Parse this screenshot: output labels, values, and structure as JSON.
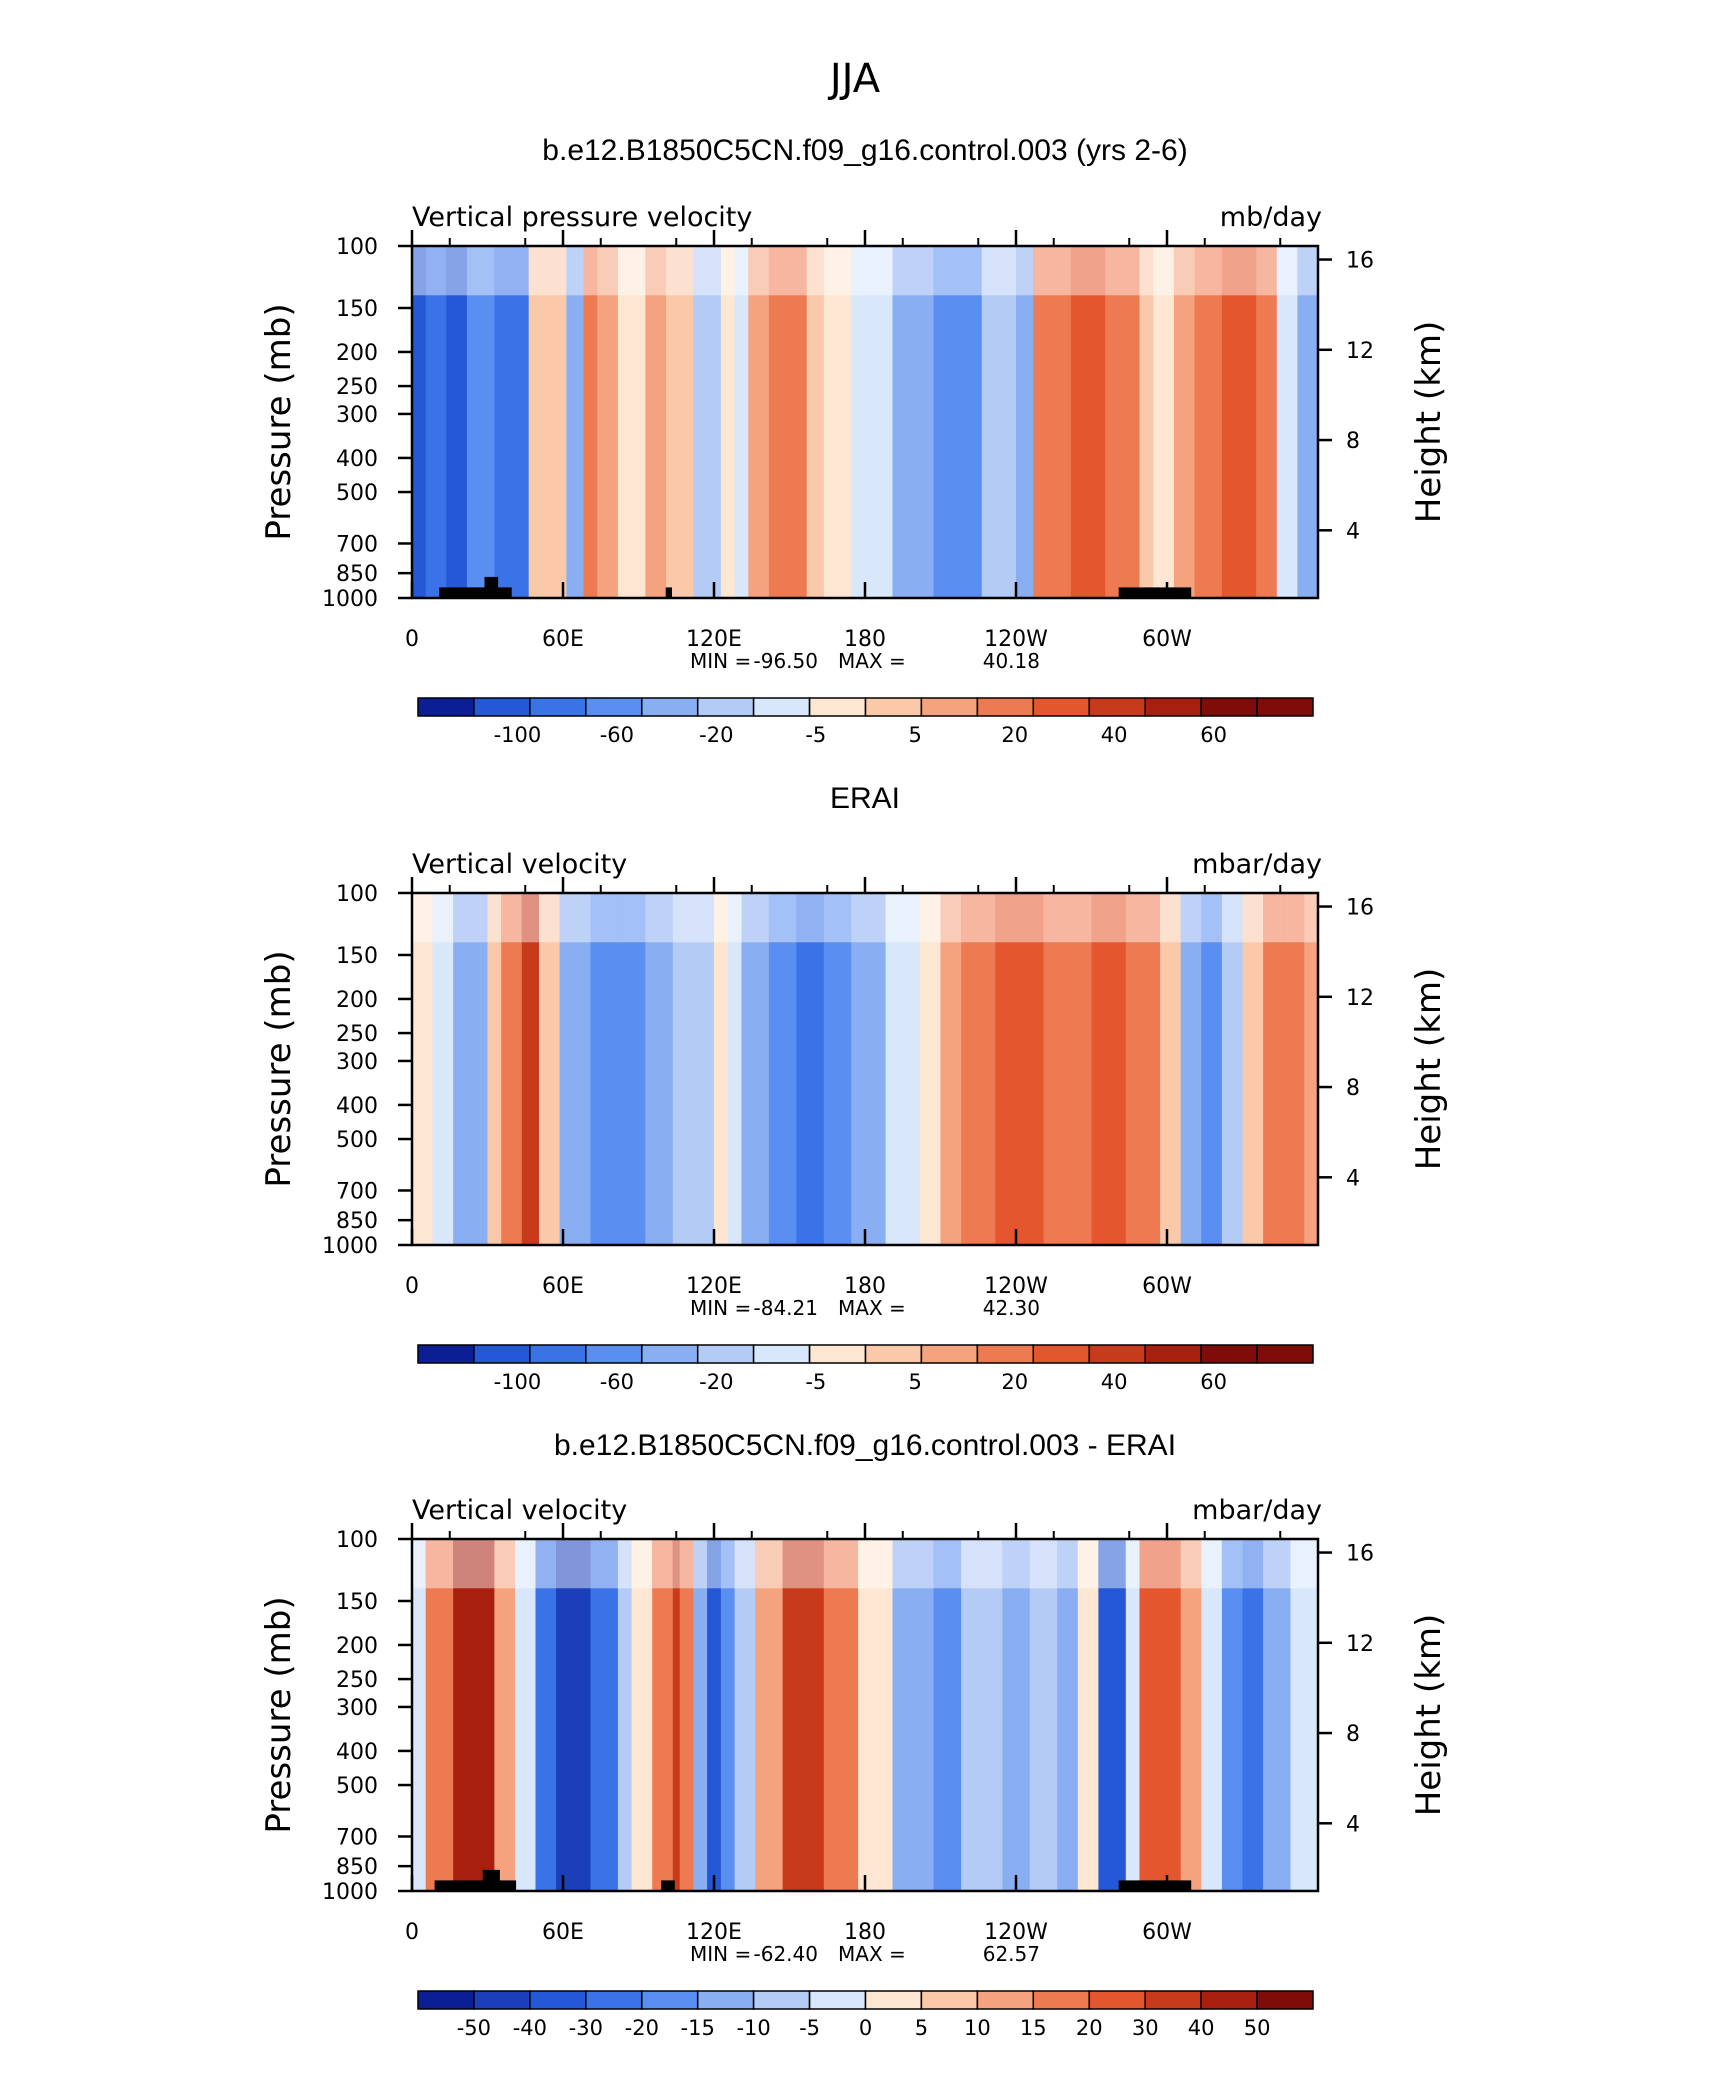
{
  "figure_title": "JJA",
  "chart_data": [
    {
      "type": "heatmap",
      "title": "b.e12.B1850C5CN.f09_g16.control.003 (yrs 2-6)",
      "subtitle_left": "Vertical pressure velocity",
      "units": "mb/day",
      "xlabel": "",
      "ylabel": "Pressure (mb)",
      "y2label": "Height (km)",
      "x_ticks": [
        "0",
        "60E",
        "120E",
        "180",
        "120W",
        "60W"
      ],
      "y_ticks": [
        "100",
        "150",
        "200",
        "250",
        "300",
        "400",
        "500",
        "700",
        "850",
        "1000"
      ],
      "y2_ticks": [
        "16",
        "12",
        "8",
        "4"
      ],
      "y_scale": "log",
      "stats": {
        "min_label": "MIN =",
        "min": "-96.50",
        "max_label": "MAX =",
        "max": "40.18"
      },
      "colorbar_labels": [
        "-100",
        "-60",
        "-20",
        "-5",
        "5",
        "20",
        "40",
        "60"
      ],
      "bands": [
        [
          0,
          20,
          "c3"
        ],
        [
          20,
          50,
          "c4"
        ],
        [
          50,
          80,
          "c3"
        ],
        [
          80,
          120,
          "c5"
        ],
        [
          120,
          170,
          "c4"
        ],
        [
          170,
          225,
          "c10"
        ],
        [
          225,
          250,
          "c6"
        ],
        [
          250,
          270,
          "c12"
        ],
        [
          270,
          300,
          "c11"
        ],
        [
          300,
          340,
          "c9"
        ],
        [
          340,
          370,
          "c11"
        ],
        [
          370,
          410,
          "c10"
        ],
        [
          410,
          450,
          "c7"
        ],
        [
          450,
          470,
          "c9"
        ],
        [
          470,
          490,
          "c8"
        ],
        [
          490,
          520,
          "c11"
        ],
        [
          520,
          575,
          "c12"
        ],
        [
          575,
          600,
          "c10"
        ],
        [
          600,
          640,
          "c9"
        ],
        [
          640,
          700,
          "c8"
        ],
        [
          700,
          760,
          "c6"
        ],
        [
          760,
          830,
          "c5"
        ],
        [
          830,
          880,
          "c7"
        ],
        [
          880,
          905,
          "c6"
        ],
        [
          905,
          960,
          "c12"
        ],
        [
          960,
          1010,
          "c13"
        ],
        [
          1010,
          1060,
          "c12"
        ],
        [
          1060,
          1080,
          "c10"
        ],
        [
          1080,
          1110,
          "c9"
        ],
        [
          1110,
          1140,
          "c11"
        ],
        [
          1140,
          1180,
          "c12"
        ],
        [
          1180,
          1230,
          "c13"
        ],
        [
          1230,
          1260,
          "c12"
        ],
        [
          1260,
          1290,
          "c8"
        ],
        [
          1290,
          1320,
          "c6"
        ]
      ],
      "land": [
        [
          0.03,
          0.11,
          0.03
        ],
        [
          0.08,
          0.095,
          0.06
        ],
        [
          0.28,
          0.287,
          0.03
        ],
        [
          0.78,
          0.86,
          0.03
        ]
      ]
    },
    {
      "type": "heatmap",
      "title": "ERAI",
      "subtitle_left": "Vertical velocity",
      "units": "mbar/day",
      "xlabel": "",
      "ylabel": "Pressure (mb)",
      "y2label": "Height (km)",
      "x_ticks": [
        "0",
        "60E",
        "120E",
        "180",
        "120W",
        "60W"
      ],
      "y_ticks": [
        "100",
        "150",
        "200",
        "250",
        "300",
        "400",
        "500",
        "700",
        "850",
        "1000"
      ],
      "y2_ticks": [
        "16",
        "12",
        "8",
        "4"
      ],
      "y_scale": "log",
      "stats": {
        "min_label": "MIN =",
        "min": "-84.21",
        "max_label": "MAX =",
        "max": "42.30"
      },
      "colorbar_labels": [
        "-100",
        "-60",
        "-20",
        "-5",
        "5",
        "20",
        "40",
        "60"
      ],
      "bands": [
        [
          0,
          30,
          "c9"
        ],
        [
          30,
          60,
          "c8"
        ],
        [
          60,
          110,
          "c6"
        ],
        [
          110,
          130,
          "c10"
        ],
        [
          130,
          160,
          "c12"
        ],
        [
          160,
          185,
          "c14"
        ],
        [
          185,
          215,
          "c10"
        ],
        [
          215,
          260,
          "c6"
        ],
        [
          260,
          300,
          "c5"
        ],
        [
          300,
          340,
          "c5"
        ],
        [
          340,
          380,
          "c6"
        ],
        [
          380,
          440,
          "c7"
        ],
        [
          440,
          460,
          "c9"
        ],
        [
          460,
          480,
          "c8"
        ],
        [
          480,
          520,
          "c6"
        ],
        [
          520,
          560,
          "c5"
        ],
        [
          560,
          600,
          "c4"
        ],
        [
          600,
          640,
          "c5"
        ],
        [
          640,
          690,
          "c6"
        ],
        [
          690,
          740,
          "c8"
        ],
        [
          740,
          770,
          "c9"
        ],
        [
          770,
          800,
          "c11"
        ],
        [
          800,
          850,
          "c12"
        ],
        [
          850,
          920,
          "c13"
        ],
        [
          920,
          990,
          "c12"
        ],
        [
          990,
          1040,
          "c13"
        ],
        [
          1040,
          1090,
          "c12"
        ],
        [
          1090,
          1120,
          "c10"
        ],
        [
          1120,
          1150,
          "c6"
        ],
        [
          1150,
          1180,
          "c5"
        ],
        [
          1180,
          1210,
          "c7"
        ],
        [
          1210,
          1240,
          "c10"
        ],
        [
          1240,
          1270,
          "c12"
        ],
        [
          1270,
          1300,
          "c12"
        ],
        [
          1300,
          1320,
          "c11"
        ]
      ],
      "land": []
    },
    {
      "type": "heatmap",
      "title": "b.e12.B1850C5CN.f09_g16.control.003 - ERAI",
      "subtitle_left": "Vertical velocity",
      "units": "mbar/day",
      "xlabel": "",
      "ylabel": "Pressure (mb)",
      "y2label": "Height (km)",
      "x_ticks": [
        "0",
        "60E",
        "120E",
        "180",
        "120W",
        "60W"
      ],
      "y_ticks": [
        "100",
        "150",
        "200",
        "250",
        "300",
        "400",
        "500",
        "700",
        "850",
        "1000"
      ],
      "y2_ticks": [
        "16",
        "12",
        "8",
        "4"
      ],
      "y_scale": "log",
      "stats": {
        "min_label": "MIN =",
        "min": "-62.40",
        "max_label": "MAX =",
        "max": "62.57"
      },
      "colorbar_labels": [
        "-50",
        "-40",
        "-30",
        "-20",
        "-15",
        "-10",
        "-5",
        "0",
        "5",
        "10",
        "15",
        "20",
        "30",
        "40",
        "50"
      ],
      "bands": [
        [
          0,
          20,
          "c8"
        ],
        [
          20,
          60,
          "c12"
        ],
        [
          60,
          120,
          "c15"
        ],
        [
          120,
          150,
          "c11"
        ],
        [
          150,
          180,
          "c8"
        ],
        [
          180,
          210,
          "c4"
        ],
        [
          210,
          260,
          "c2"
        ],
        [
          260,
          300,
          "c4"
        ],
        [
          300,
          320,
          "c7"
        ],
        [
          320,
          350,
          "c9"
        ],
        [
          350,
          380,
          "c12"
        ],
        [
          380,
          390,
          "c14"
        ],
        [
          390,
          410,
          "c12"
        ],
        [
          410,
          430,
          "c6"
        ],
        [
          430,
          450,
          "c3"
        ],
        [
          450,
          470,
          "c5"
        ],
        [
          470,
          500,
          "c7"
        ],
        [
          500,
          540,
          "c11"
        ],
        [
          540,
          600,
          "c14"
        ],
        [
          600,
          650,
          "c12"
        ],
        [
          650,
          700,
          "c9"
        ],
        [
          700,
          760,
          "c6"
        ],
        [
          760,
          800,
          "c5"
        ],
        [
          800,
          860,
          "c7"
        ],
        [
          860,
          900,
          "c6"
        ],
        [
          900,
          940,
          "c7"
        ],
        [
          940,
          970,
          "c6"
        ],
        [
          970,
          1000,
          "c9"
        ],
        [
          1000,
          1040,
          "c3"
        ],
        [
          1040,
          1060,
          "c8"
        ],
        [
          1060,
          1120,
          "c13"
        ],
        [
          1120,
          1150,
          "c11"
        ],
        [
          1150,
          1180,
          "c8"
        ],
        [
          1180,
          1210,
          "c5"
        ],
        [
          1210,
          1240,
          "c4"
        ],
        [
          1240,
          1280,
          "c6"
        ],
        [
          1280,
          1320,
          "c8"
        ]
      ],
      "land": [
        [
          0.025,
          0.115,
          0.03
        ],
        [
          0.078,
          0.097,
          0.06
        ],
        [
          0.275,
          0.29,
          0.03
        ],
        [
          0.78,
          0.86,
          0.03
        ]
      ]
    }
  ],
  "palette": {
    "c1": "#0c1e96",
    "c2": "#1a3fb8",
    "c3": "#2458d6",
    "c4": "#3a72e8",
    "c5": "#5a8ef0",
    "c6": "#89aef2",
    "c7": "#b3cbf5",
    "c8": "#d8e7fa",
    "c9": "#fde6d2",
    "c10": "#f9c9a9",
    "c11": "#f4a37e",
    "c12": "#ee7a51",
    "c13": "#e4562d",
    "c14": "#c73a1c",
    "c15": "#a81f0f",
    "c16": "#7f0c08"
  }
}
